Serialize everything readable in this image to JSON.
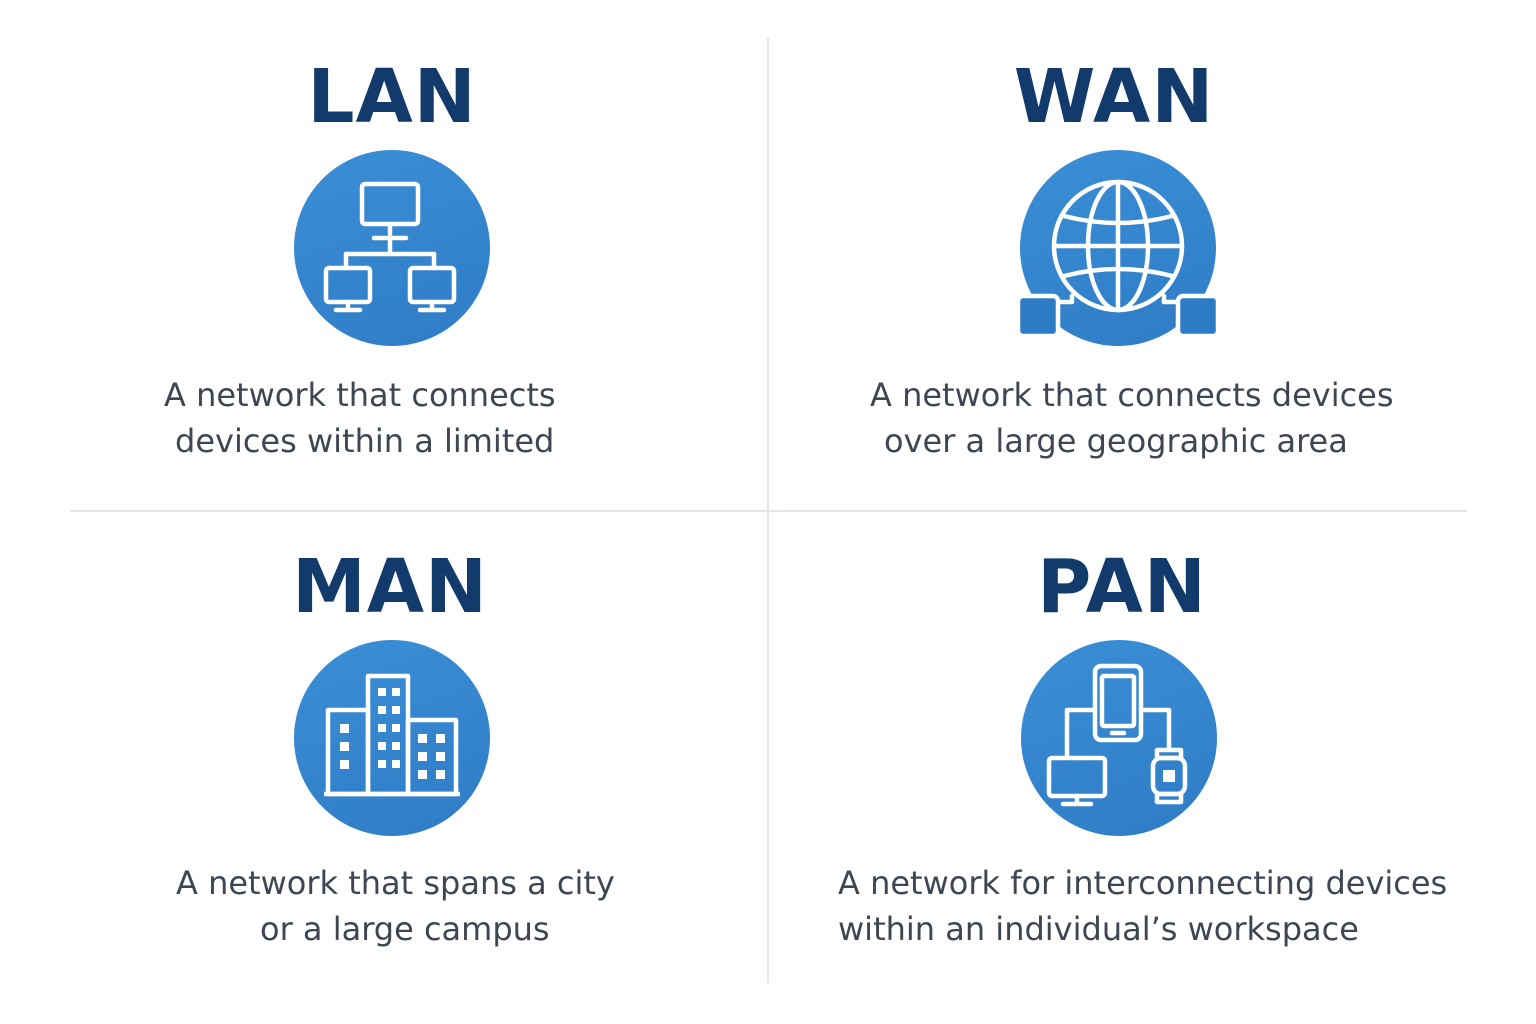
{
  "colors": {
    "title": "#123b6c",
    "icon_bg": "#2f7cc6",
    "icon_stroke": "#ffffff",
    "text": "#3f4653",
    "divider": "#e3e6ea"
  },
  "cards": {
    "lan": {
      "title": "LAN",
      "icon": "network-hierarchy-icon",
      "desc_line1": "A network that connects",
      "desc_line2": "devices within a limited"
    },
    "wan": {
      "title": "WAN",
      "icon": "globe-network-icon",
      "desc_line1": "A network that connects devices",
      "desc_line2": "over a large geographic area"
    },
    "man": {
      "title": "MAN",
      "icon": "city-buildings-icon",
      "desc_line1": "A network that spans a city",
      "desc_line2": "or a large campus"
    },
    "pan": {
      "title": "PAN",
      "icon": "personal-devices-icon",
      "desc_line1": "A network for interconnecting devices",
      "desc_line2": "within an individual’s workspace"
    }
  }
}
